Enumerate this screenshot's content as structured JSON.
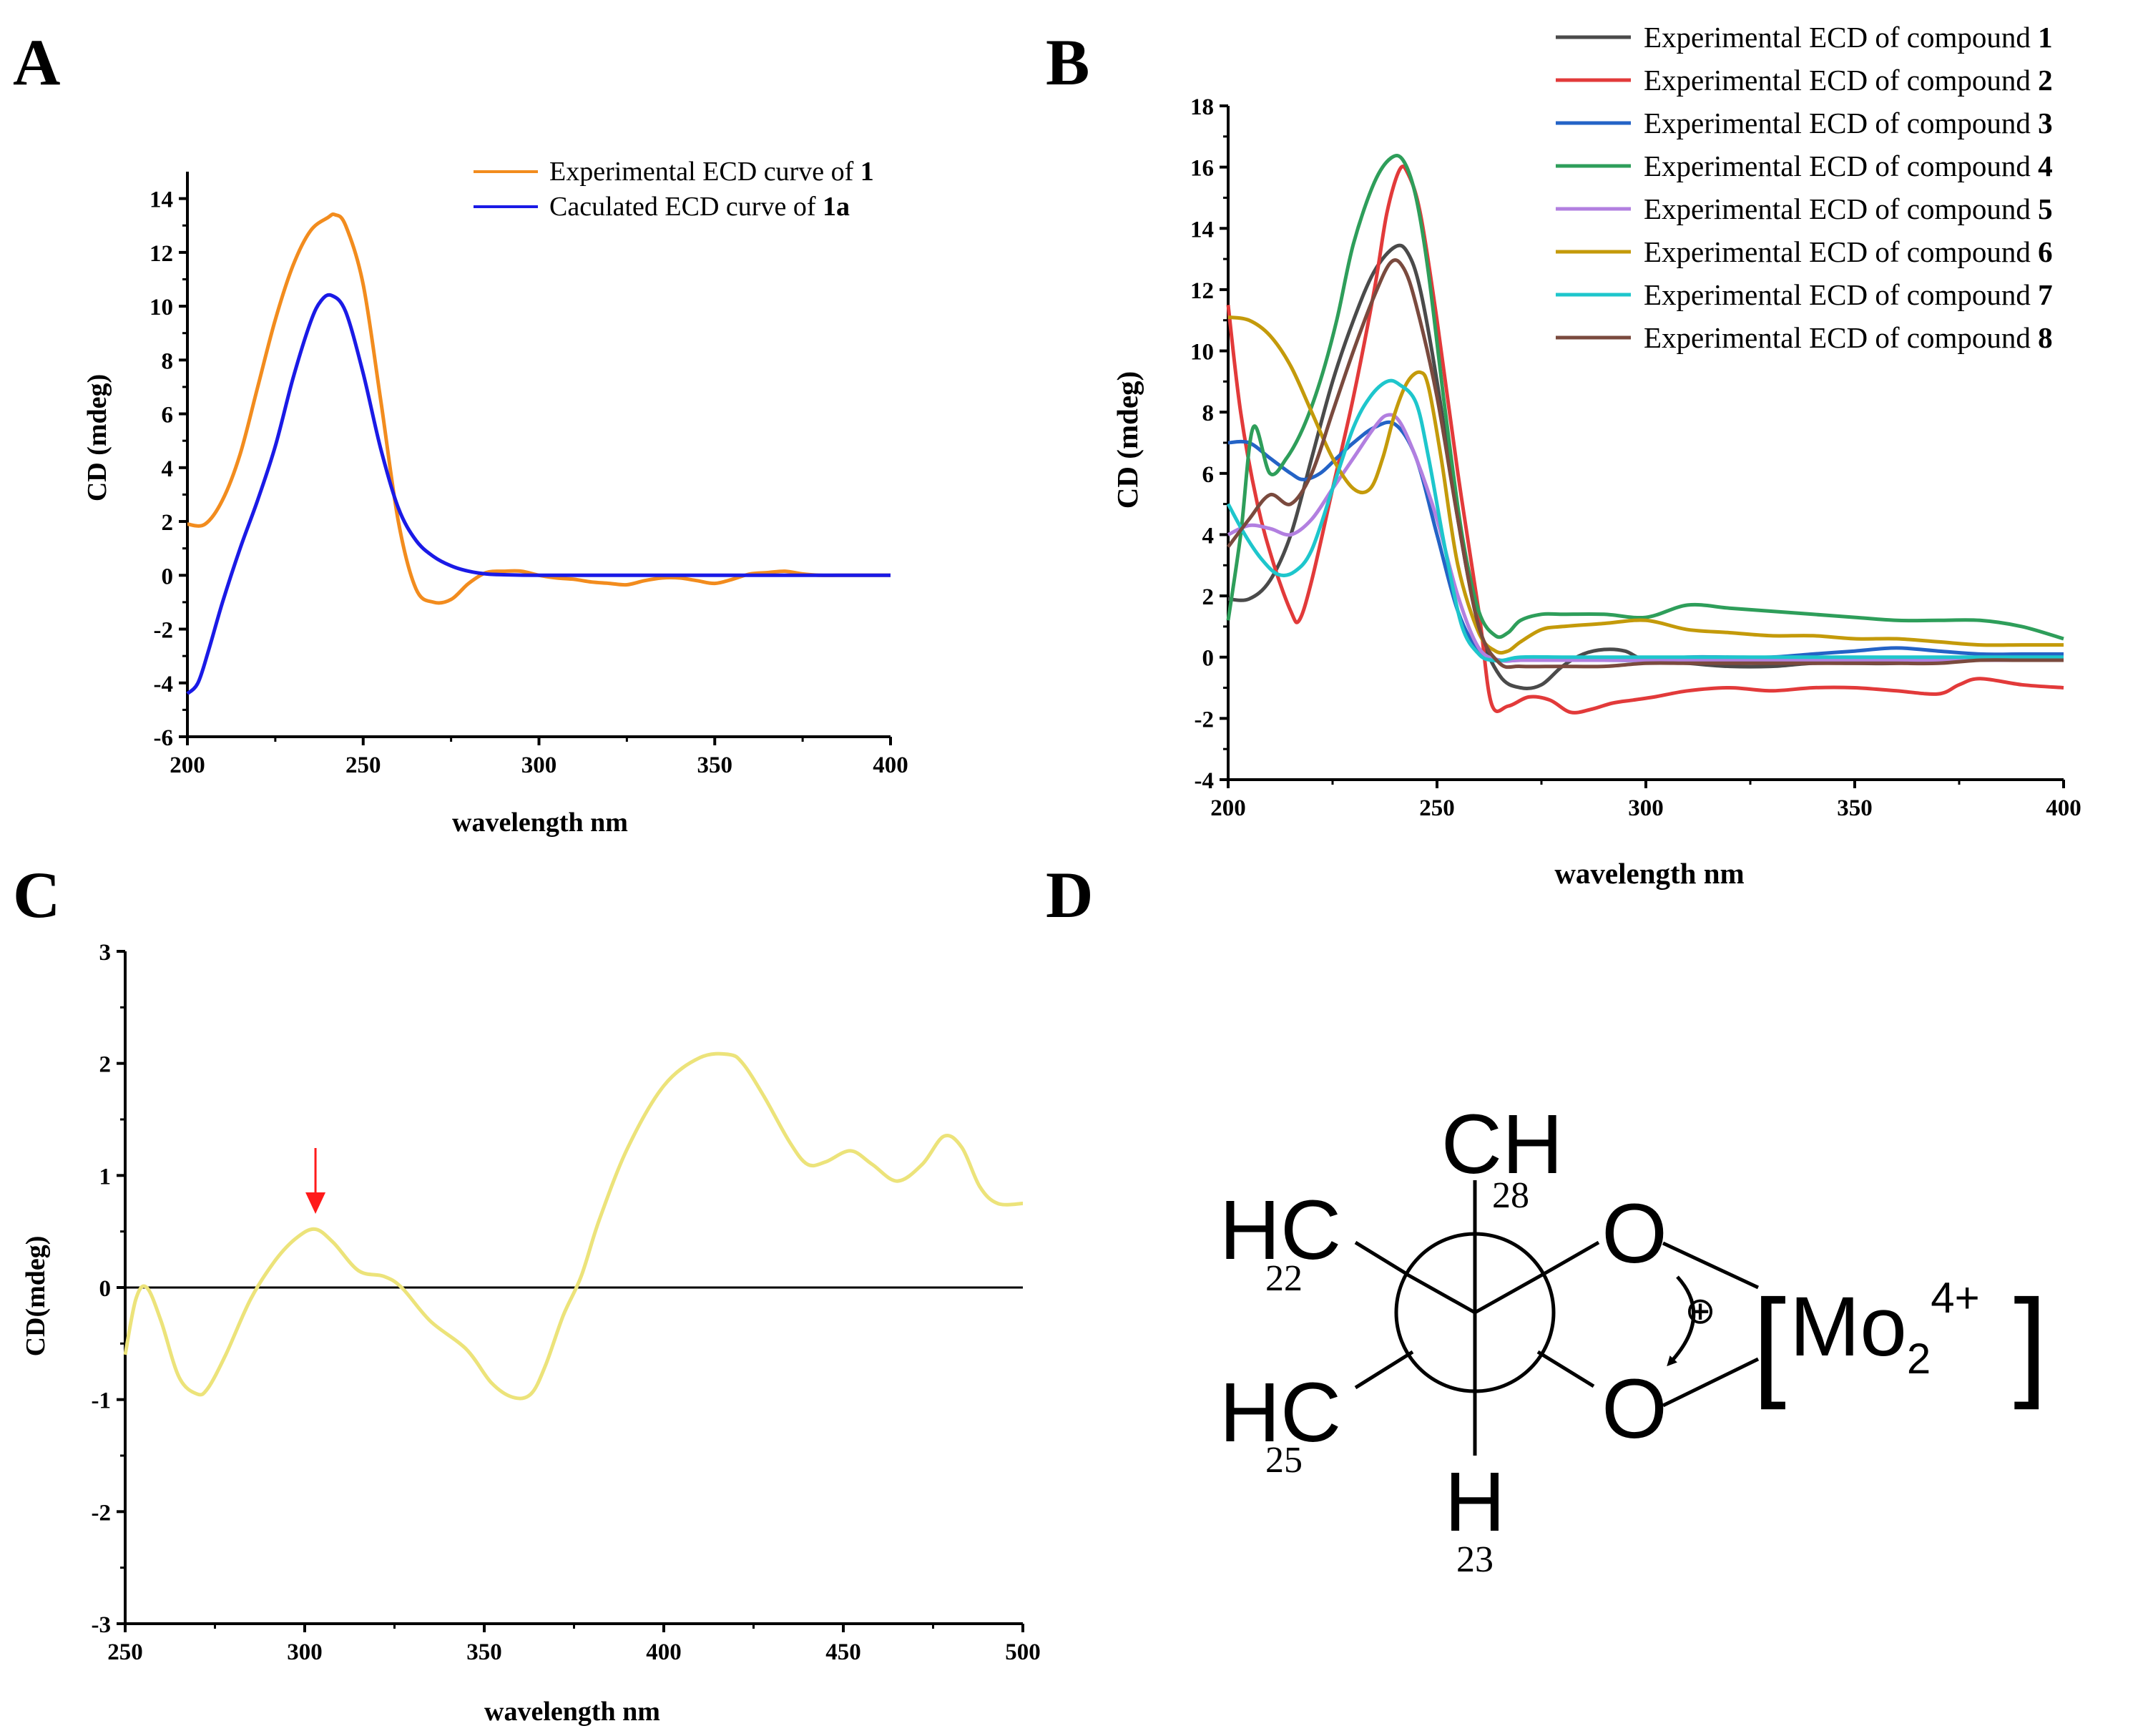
{
  "panels": {
    "A": "A",
    "B": "B",
    "C": "C",
    "D": "D"
  },
  "chart_data": [
    {
      "id": "A",
      "type": "line",
      "title": "",
      "xlabel": "wavelength nm",
      "ylabel": "CD (mdeg)",
      "xlim": [
        200,
        400
      ],
      "ylim": [
        -6,
        15
      ],
      "xticks": [
        200,
        250,
        300,
        350,
        400
      ],
      "yticks": [
        -6,
        -4,
        -2,
        0,
        2,
        4,
        6,
        8,
        10,
        12,
        14
      ],
      "legend": "top-right",
      "series": [
        {
          "name": "Experimental ECD curve of 1",
          "name_text": "Experimental ECD curve of ",
          "name_bold": "1",
          "color": "#f28c1e",
          "x": [
            200,
            205,
            210,
            215,
            220,
            225,
            230,
            235,
            240,
            242,
            245,
            250,
            255,
            260,
            265,
            270,
            275,
            280,
            285,
            290,
            295,
            300,
            305,
            310,
            315,
            320,
            325,
            330,
            335,
            340,
            345,
            350,
            355,
            360,
            365,
            370,
            375,
            380,
            385,
            390,
            395,
            400
          ],
          "y": [
            1.9,
            1.9,
            2.8,
            4.5,
            7.0,
            9.5,
            11.5,
            12.8,
            13.3,
            13.4,
            13.0,
            10.8,
            6.5,
            2.0,
            -0.5,
            -1.0,
            -0.9,
            -0.3,
            0.1,
            0.15,
            0.15,
            0.0,
            -0.1,
            -0.15,
            -0.25,
            -0.3,
            -0.35,
            -0.2,
            -0.1,
            -0.1,
            -0.2,
            -0.3,
            -0.15,
            0.05,
            0.1,
            0.15,
            0.05,
            0.0,
            0.0,
            0.0,
            0.0,
            0.0
          ]
        },
        {
          "name": "Caculated ECD curve of 1a",
          "name_text": "Caculated ECD curve of ",
          "name_bold": "1a",
          "color": "#1a1ae6",
          "x": [
            200,
            203,
            206,
            210,
            215,
            220,
            225,
            230,
            235,
            238,
            241,
            245,
            250,
            255,
            260,
            265,
            270,
            275,
            280,
            285,
            290,
            300,
            320,
            350,
            400
          ],
          "y": [
            -4.4,
            -4.0,
            -2.8,
            -1.0,
            1.0,
            2.8,
            4.8,
            7.3,
            9.4,
            10.2,
            10.4,
            9.8,
            7.5,
            4.7,
            2.5,
            1.3,
            0.7,
            0.35,
            0.15,
            0.05,
            0.02,
            0.0,
            0.0,
            0.0,
            0.0
          ]
        }
      ]
    },
    {
      "id": "B",
      "type": "line",
      "title": "",
      "xlabel": "wavelength nm",
      "ylabel": "CD (mdeg)",
      "xlim": [
        200,
        400
      ],
      "ylim": [
        -4,
        18
      ],
      "xticks": [
        200,
        250,
        300,
        350,
        400
      ],
      "yticks": [
        -4,
        -2,
        0,
        2,
        4,
        6,
        8,
        10,
        12,
        14,
        16,
        18
      ],
      "legend": "top-right, outside",
      "series": [
        {
          "name": "Experimental ECD of compound 1",
          "name_text": "Experimental ECD of compound ",
          "name_bold": "1",
          "color": "#4a4a4a",
          "x": [
            200,
            205,
            210,
            215,
            220,
            225,
            230,
            235,
            240,
            243,
            246,
            250,
            255,
            260,
            265,
            270,
            275,
            280,
            285,
            290,
            295,
            300,
            310,
            320,
            330,
            340,
            350,
            360,
            370,
            380,
            390,
            400
          ],
          "y": [
            1.9,
            1.9,
            2.5,
            4.0,
            6.5,
            9.0,
            11.0,
            12.6,
            13.4,
            13.2,
            12.0,
            9.0,
            4.5,
            1.0,
            -0.6,
            -1.0,
            -0.9,
            -0.3,
            0.1,
            0.25,
            0.2,
            -0.1,
            -0.2,
            -0.3,
            -0.3,
            -0.2,
            -0.2,
            -0.2,
            -0.1,
            0.0,
            0.0,
            0.0
          ]
        },
        {
          "name": "Experimental ECD of compound 2",
          "name_text": "Experimental ECD of compound ",
          "name_bold": "2",
          "color": "#e23a3a",
          "x": [
            200,
            203,
            207,
            211,
            215,
            217,
            220,
            225,
            230,
            235,
            238,
            241,
            243,
            246,
            250,
            255,
            260,
            263,
            267,
            272,
            277,
            282,
            287,
            292,
            297,
            302,
            310,
            320,
            330,
            340,
            350,
            360,
            370,
            375,
            380,
            390,
            400
          ],
          "y": [
            11.5,
            8.0,
            5.0,
            3.0,
            1.5,
            1.2,
            2.5,
            5.5,
            8.5,
            12.0,
            14.5,
            15.9,
            15.8,
            14.5,
            11.0,
            6.0,
            1.5,
            -1.5,
            -1.6,
            -1.3,
            -1.4,
            -1.8,
            -1.7,
            -1.5,
            -1.4,
            -1.3,
            -1.1,
            -1.0,
            -1.1,
            -1.0,
            -1.0,
            -1.1,
            -1.2,
            -0.9,
            -0.7,
            -0.9,
            -1.0
          ]
        },
        {
          "name": "Experimental ECD of compound 3",
          "name_text": "Experimental ECD of compound ",
          "name_bold": "3",
          "color": "#2463c6",
          "x": [
            200,
            205,
            210,
            215,
            218,
            222,
            226,
            230,
            235,
            240,
            245,
            250,
            255,
            260,
            265,
            270,
            280,
            290,
            300,
            310,
            320,
            330,
            340,
            350,
            360,
            370,
            380,
            390,
            400
          ],
          "y": [
            7.0,
            7.0,
            6.5,
            6.0,
            5.8,
            6.0,
            6.5,
            7.0,
            7.5,
            7.6,
            6.5,
            4.0,
            1.5,
            0.2,
            -0.1,
            -0.1,
            -0.1,
            -0.1,
            -0.1,
            0.0,
            0.0,
            0.0,
            0.1,
            0.2,
            0.3,
            0.2,
            0.1,
            0.1,
            0.1
          ]
        },
        {
          "name": "Experimental ECD of compound 4",
          "name_text": "Experimental ECD of compound ",
          "name_bold": "4",
          "color": "#2e9e5a",
          "x": [
            200,
            203,
            206,
            210,
            214,
            218,
            222,
            226,
            230,
            235,
            239,
            242,
            245,
            248,
            252,
            256,
            260,
            264,
            267,
            270,
            275,
            280,
            290,
            300,
            310,
            320,
            330,
            340,
            350,
            360,
            370,
            380,
            390,
            400
          ],
          "y": [
            1.2,
            4.0,
            7.5,
            6.0,
            6.5,
            7.5,
            9.0,
            11.0,
            13.5,
            15.5,
            16.3,
            16.2,
            15.0,
            12.5,
            8.0,
            4.0,
            1.5,
            0.7,
            0.8,
            1.2,
            1.4,
            1.4,
            1.4,
            1.3,
            1.7,
            1.6,
            1.5,
            1.4,
            1.3,
            1.2,
            1.2,
            1.2,
            1.0,
            0.6
          ]
        },
        {
          "name": "Experimental ECD of compound 5",
          "name_text": "Experimental ECD of compound ",
          "name_bold": "5",
          "color": "#b27fe0",
          "x": [
            200,
            205,
            210,
            215,
            220,
            225,
            230,
            235,
            238,
            241,
            245,
            250,
            255,
            260,
            265,
            270,
            280,
            290,
            300,
            310,
            320,
            330,
            340,
            350,
            360,
            370,
            380,
            390,
            400
          ],
          "y": [
            4.0,
            4.3,
            4.2,
            4.0,
            4.5,
            5.5,
            6.5,
            7.5,
            7.9,
            7.7,
            6.5,
            4.5,
            2.0,
            0.3,
            -0.1,
            -0.1,
            -0.1,
            -0.1,
            -0.1,
            -0.1,
            -0.1,
            -0.1,
            -0.1,
            -0.1,
            -0.1,
            -0.1,
            -0.1,
            -0.1,
            -0.1
          ]
        },
        {
          "name": "Experimental ECD of compound 6",
          "name_text": "Experimental ECD of compound ",
          "name_bold": "6",
          "color": "#c49a0a",
          "x": [
            200,
            205,
            210,
            215,
            220,
            225,
            230,
            234,
            237,
            240,
            243,
            246,
            248,
            251,
            255,
            260,
            264,
            267,
            270,
            275,
            280,
            290,
            300,
            310,
            320,
            330,
            340,
            350,
            360,
            370,
            380,
            390,
            400
          ],
          "y": [
            11.1,
            11.0,
            10.5,
            9.5,
            8.0,
            6.5,
            5.5,
            5.5,
            6.5,
            8.0,
            9.0,
            9.3,
            8.8,
            6.5,
            3.0,
            0.8,
            0.2,
            0.2,
            0.5,
            0.9,
            1.0,
            1.1,
            1.2,
            0.9,
            0.8,
            0.7,
            0.7,
            0.6,
            0.6,
            0.5,
            0.4,
            0.4,
            0.4
          ]
        },
        {
          "name": "Experimental ECD of compound 7",
          "name_text": "Experimental ECD of compound ",
          "name_bold": "7",
          "color": "#1ec6cc",
          "x": [
            200,
            204,
            208,
            212,
            216,
            220,
            225,
            230,
            234,
            238,
            241,
            245,
            248,
            252,
            256,
            260,
            263,
            266,
            270,
            280,
            290,
            300,
            320,
            340,
            360,
            380,
            400
          ],
          "y": [
            5.0,
            4.0,
            3.2,
            2.7,
            2.8,
            3.5,
            5.5,
            7.5,
            8.5,
            9.0,
            8.9,
            8.3,
            6.5,
            3.5,
            1.0,
            0.1,
            -0.1,
            -0.1,
            0.0,
            0.0,
            0.0,
            0.0,
            0.0,
            0.0,
            0.0,
            0.0,
            0.0
          ]
        },
        {
          "name": "Experimental ECD of compound 8",
          "name_text": "Experimental ECD of compound ",
          "name_bold": "8",
          "color": "#7a4a3e",
          "x": [
            200,
            205,
            210,
            215,
            220,
            225,
            230,
            235,
            239,
            242,
            245,
            250,
            255,
            260,
            265,
            270,
            280,
            290,
            300,
            310,
            320,
            330,
            340,
            350,
            360,
            370,
            380,
            390,
            400
          ],
          "y": [
            3.6,
            4.5,
            5.3,
            5.0,
            6.0,
            8.0,
            10.0,
            11.8,
            12.9,
            12.7,
            11.5,
            8.5,
            4.5,
            1.0,
            -0.2,
            -0.3,
            -0.3,
            -0.3,
            -0.2,
            -0.2,
            -0.2,
            -0.2,
            -0.2,
            -0.2,
            -0.2,
            -0.2,
            -0.1,
            -0.1,
            -0.1
          ]
        }
      ]
    },
    {
      "id": "C",
      "type": "line",
      "title": "",
      "xlabel": "wavelength nm",
      "ylabel": "CD(mdeg)",
      "xlim": [
        250,
        500
      ],
      "ylim": [
        -3,
        3
      ],
      "xticks": [
        250,
        300,
        350,
        400,
        450,
        500
      ],
      "yticks": [
        -3,
        -2,
        -1,
        0,
        1,
        2,
        3
      ],
      "zero_line": true,
      "arrow_at_x": 303,
      "arrow_color": "#ff1a1a",
      "series": [
        {
          "name": "CD",
          "color": "#ece37a",
          "x": [
            250,
            253,
            256,
            260,
            265,
            270,
            273,
            278,
            285,
            292,
            298,
            303,
            308,
            315,
            322,
            327,
            335,
            345,
            352,
            358,
            363,
            367,
            372,
            377,
            382,
            390,
            400,
            410,
            418,
            422,
            428,
            435,
            440,
            445,
            452,
            458,
            465,
            472,
            478,
            483,
            488,
            493,
            500
          ],
          "y": [
            -0.6,
            -0.1,
            0.0,
            -0.3,
            -0.8,
            -0.95,
            -0.9,
            -0.6,
            -0.1,
            0.25,
            0.45,
            0.52,
            0.4,
            0.15,
            0.1,
            0.0,
            -0.3,
            -0.55,
            -0.85,
            -0.98,
            -0.95,
            -0.7,
            -0.25,
            0.1,
            0.6,
            1.25,
            1.8,
            2.05,
            2.08,
            2.0,
            1.7,
            1.3,
            1.1,
            1.12,
            1.22,
            1.1,
            0.95,
            1.1,
            1.35,
            1.25,
            0.9,
            0.75,
            0.75
          ]
        }
      ]
    }
  ],
  "diagram_D": {
    "top_group": "CH",
    "top_num": "28",
    "left_upper_group": "HC",
    "left_upper_num": "22",
    "left_lower_group": "HC",
    "left_lower_num": "25",
    "bottom_atom": "H",
    "bottom_num": "23",
    "right_upper_atom": "O",
    "right_lower_atom": "O",
    "charge": "⊕",
    "metal": "Mo",
    "metal_sub": "2",
    "metal_sup": "4+",
    "bracket_left": "[",
    "bracket_right": "]"
  }
}
